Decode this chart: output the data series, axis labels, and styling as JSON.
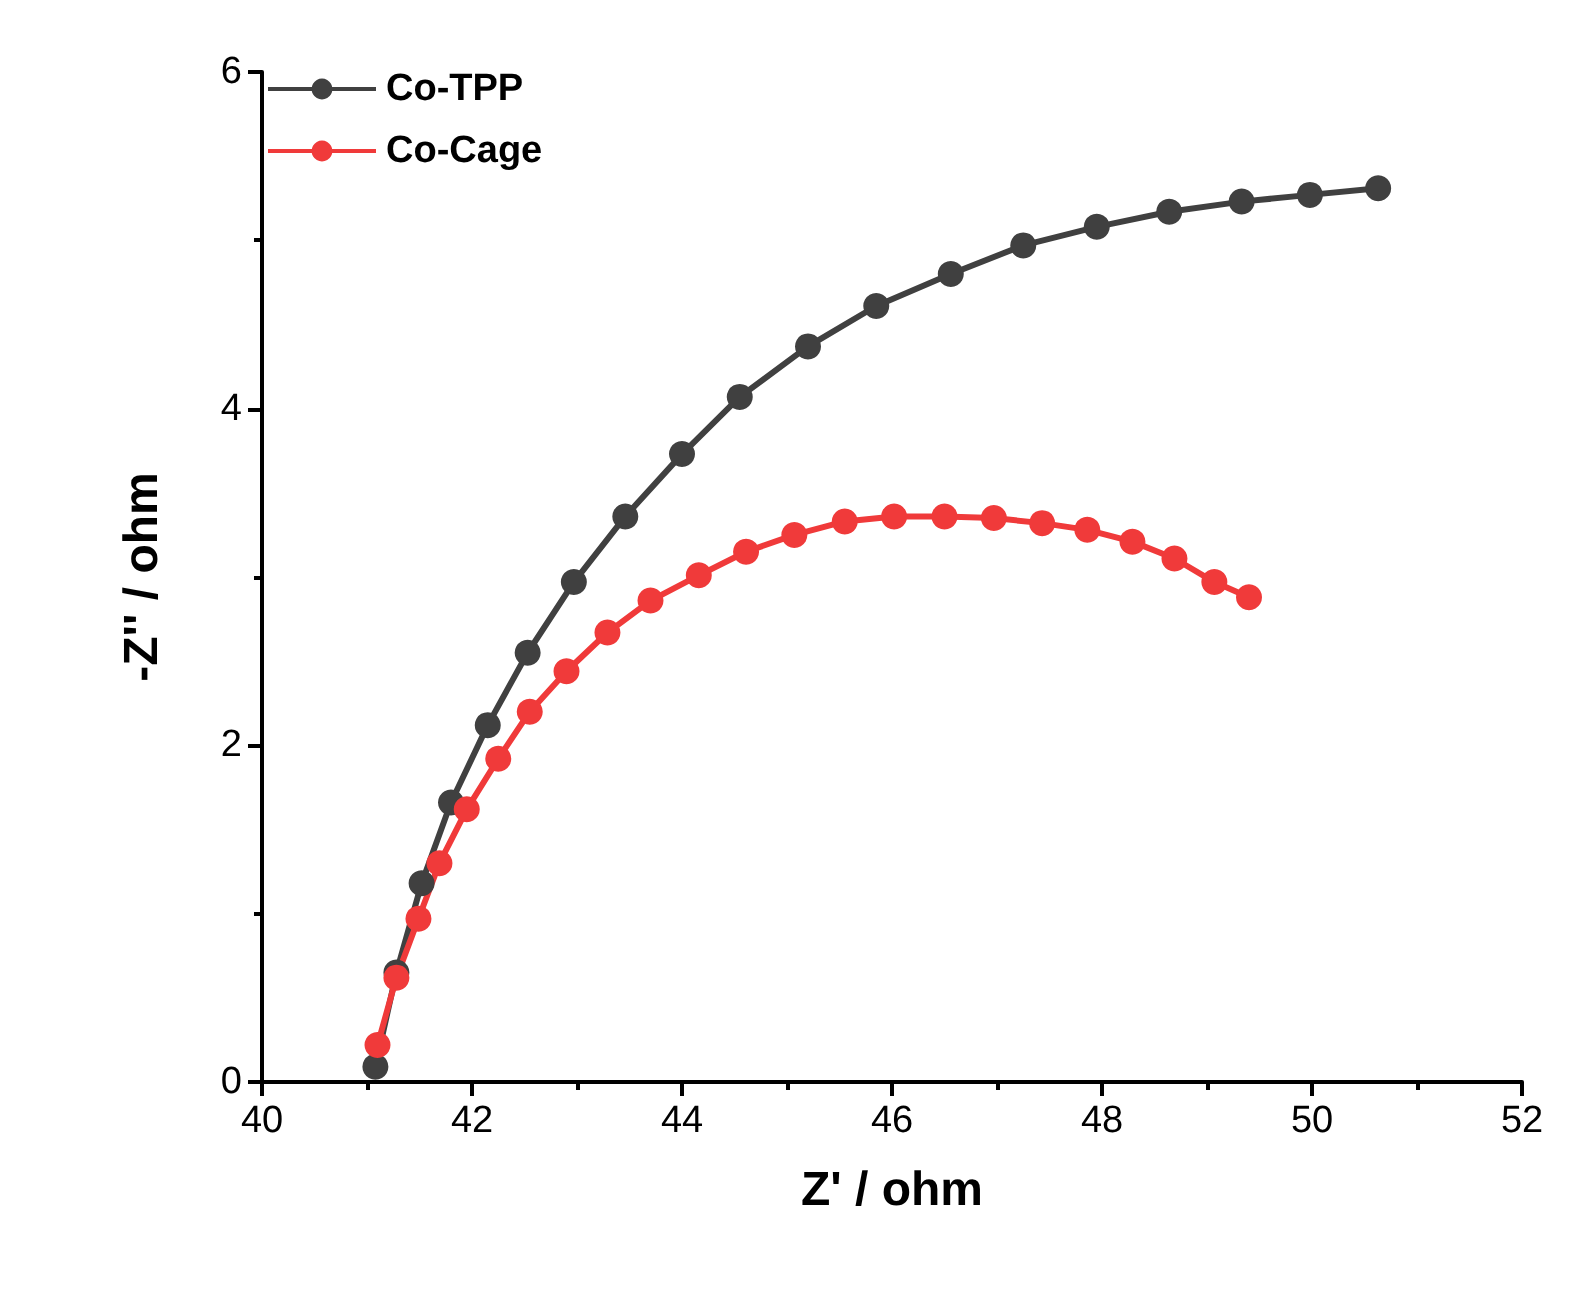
{
  "chart_data": {
    "type": "line",
    "xlabel": "Z' / ohm",
    "ylabel": "-Z'' / ohm",
    "xlim": [
      40,
      52
    ],
    "xticks": [
      40,
      42,
      44,
      46,
      48,
      50,
      52
    ],
    "ylim": [
      0,
      6
    ],
    "yticks": [
      0,
      2,
      4,
      6
    ],
    "grid": false,
    "legend": "top left",
    "marker": "circle",
    "line_style": "solid",
    "series": [
      {
        "name": "Co-TPP",
        "color": "#404040",
        "x": [
          41.08,
          41.28,
          41.52,
          41.8,
          42.15,
          42.53,
          42.97,
          43.46,
          44.0,
          44.55,
          45.2,
          45.85,
          46.56,
          47.25,
          47.95,
          48.64,
          49.33,
          49.98,
          50.63
        ],
        "values": [
          0.09,
          0.65,
          1.18,
          1.66,
          2.12,
          2.55,
          2.97,
          3.36,
          3.73,
          4.07,
          4.37,
          4.61,
          4.8,
          4.97,
          5.08,
          5.17,
          5.23,
          5.27,
          5.31
        ]
      },
      {
        "name": "Co-Cage",
        "color": "#f03a3a",
        "x": [
          41.1,
          41.28,
          41.49,
          41.69,
          41.95,
          42.25,
          42.55,
          42.9,
          43.29,
          43.7,
          44.16,
          44.61,
          45.07,
          45.55,
          46.02,
          46.5,
          46.97,
          47.43,
          47.86,
          48.29,
          48.69,
          49.07,
          49.4
        ],
        "values": [
          0.22,
          0.62,
          0.97,
          1.3,
          1.62,
          1.92,
          2.2,
          2.44,
          2.67,
          2.86,
          3.01,
          3.15,
          3.25,
          3.33,
          3.36,
          3.36,
          3.35,
          3.32,
          3.28,
          3.21,
          3.11,
          2.97,
          2.88
        ]
      }
    ]
  }
}
